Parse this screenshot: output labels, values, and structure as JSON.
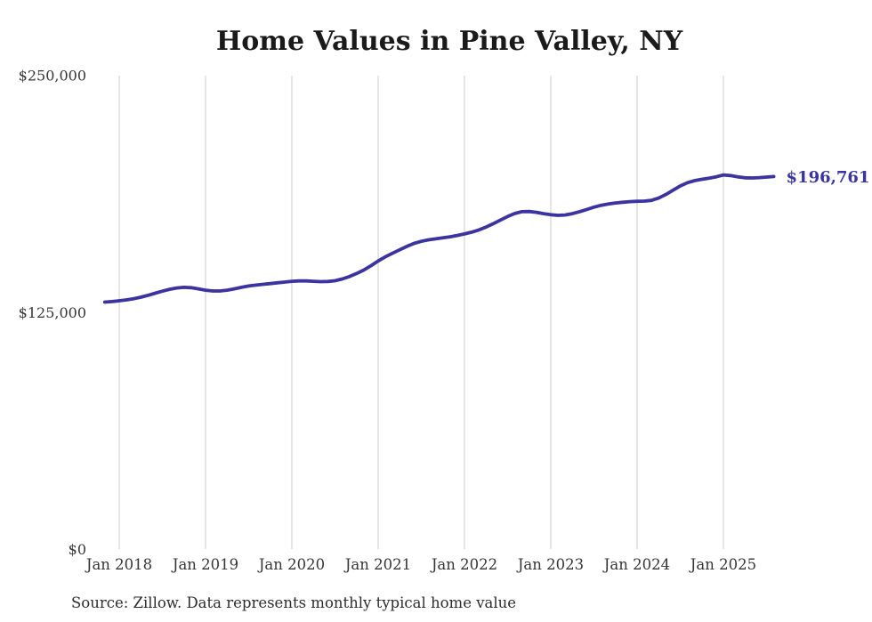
{
  "page": {
    "background_color": "#ffffff"
  },
  "chart_data": {
    "type": "line",
    "title": "Home Values in Pine Valley, NY",
    "source_note": "Source: Zillow. Data represents monthly typical home value",
    "end_label": "$196,761",
    "latest_value": 196761,
    "line_color": "#3a33a0",
    "grid_color": "#cccccc",
    "grid": "vertical-only",
    "legend": "none",
    "ylim": [
      0,
      250000
    ],
    "y_ticks": [
      {
        "value": 0,
        "label": "$0"
      },
      {
        "value": 125000,
        "label": "$125,000"
      },
      {
        "value": 250000,
        "label": "$250,000"
      }
    ],
    "x_ticks": [
      {
        "month_index": 2,
        "label": "Jan 2018"
      },
      {
        "month_index": 14,
        "label": "Jan 2019"
      },
      {
        "month_index": 26,
        "label": "Jan 2020"
      },
      {
        "month_index": 38,
        "label": "Jan 2021"
      },
      {
        "month_index": 50,
        "label": "Jan 2022"
      },
      {
        "month_index": 62,
        "label": "Jan 2023"
      },
      {
        "month_index": 74,
        "label": "Jan 2024"
      },
      {
        "month_index": 86,
        "label": "Jan 2025"
      }
    ],
    "series": [
      {
        "name": "Monthly typical home value",
        "frequency": "monthly",
        "start_month": "2017-11",
        "end_month": "2025-08",
        "values": [
          130500,
          130800,
          131200,
          131700,
          132300,
          133100,
          134100,
          135200,
          136300,
          137300,
          138000,
          138300,
          138100,
          137500,
          136800,
          136400,
          136400,
          136800,
          137500,
          138300,
          139000,
          139500,
          139900,
          140300,
          140700,
          141100,
          141500,
          141700,
          141700,
          141500,
          141300,
          141400,
          141800,
          142700,
          144000,
          145600,
          147400,
          149700,
          152200,
          154400,
          156300,
          158100,
          159900,
          161500,
          162600,
          163400,
          163900,
          164400,
          165000,
          165700,
          166500,
          167400,
          168600,
          170100,
          171900,
          173800,
          175700,
          177300,
          178200,
          178300,
          177900,
          177200,
          176600,
          176300,
          176500,
          177200,
          178200,
          179400,
          180600,
          181600,
          182300,
          182800,
          183200,
          183500,
          183700,
          183800,
          184200,
          185400,
          187300,
          189600,
          191800,
          193500,
          194600,
          195300,
          195900,
          196600,
          197600,
          197300,
          196600,
          196100,
          196000,
          196200,
          196500,
          196761
        ]
      }
    ]
  }
}
